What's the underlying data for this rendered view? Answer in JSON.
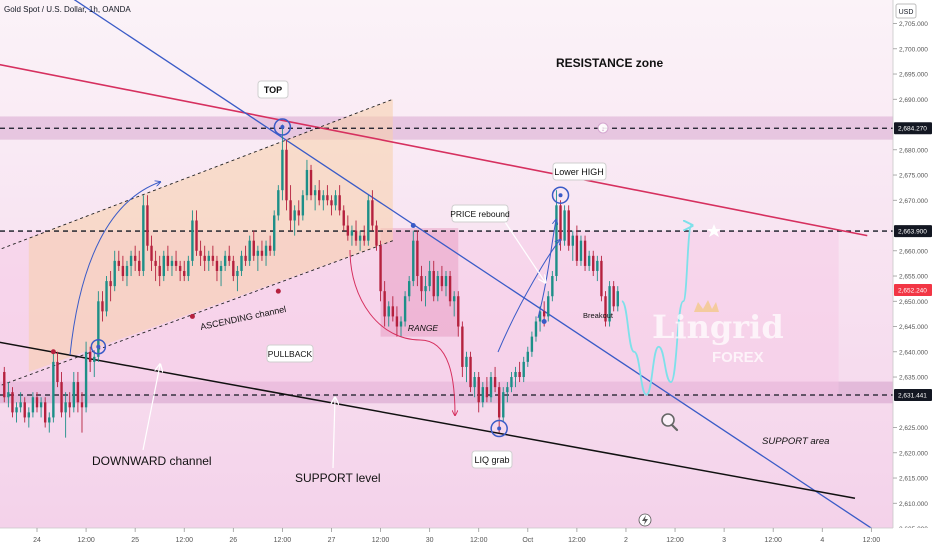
{
  "header": {
    "symbol_title": "Gold Spot / U.S. Dollar, 1h, OANDA",
    "currency": "USD"
  },
  "price_axis": {
    "ticks": [
      2705,
      2700,
      2695,
      2690,
      2680,
      2675,
      2670,
      2660,
      2655,
      2650,
      2645,
      2640,
      2635,
      2625,
      2620,
      2615,
      2610,
      2605
    ],
    "tick_labels": [
      "2,705.000",
      "2,700.000",
      "2,695.000",
      "2,690.000",
      "2,680.000",
      "2,675.000",
      "2,670.000",
      "2,660.000",
      "2,655.000",
      "2,650.000",
      "2,645.000",
      "2,640.000",
      "2,635.000",
      "2,625.000",
      "2,620.000",
      "2,615.000",
      "2,610.000",
      "2,605.000"
    ],
    "tags": [
      {
        "value": 2684.27,
        "label": "2,684.270",
        "color": "#131722"
      },
      {
        "value": 2663.9,
        "label": "2,663.900",
        "color": "#131722"
      },
      {
        "value": 2652.24,
        "label": "2,652.240",
        "color": "#f23645"
      },
      {
        "value": 2631.441,
        "label": "2,631.441",
        "color": "#131722"
      }
    ]
  },
  "time_axis": {
    "labels": [
      {
        "t": 0,
        "label": "24"
      },
      {
        "t": 12,
        "label": "12:00"
      },
      {
        "t": 24,
        "label": "25"
      },
      {
        "t": 36,
        "label": "12:00"
      },
      {
        "t": 48,
        "label": "26"
      },
      {
        "t": 60,
        "label": "12:00"
      },
      {
        "t": 72,
        "label": "27"
      },
      {
        "t": 84,
        "label": "12:00"
      },
      {
        "t": 96,
        "label": "30"
      },
      {
        "t": 108,
        "label": "12:00"
      },
      {
        "t": 120,
        "label": "Oct"
      },
      {
        "t": 132,
        "label": "12:00"
      },
      {
        "t": 144,
        "label": "2"
      },
      {
        "t": 156,
        "label": "12:00"
      },
      {
        "t": 168,
        "label": "3"
      },
      {
        "t": 180,
        "label": "12:00"
      },
      {
        "t": 192,
        "label": "4"
      },
      {
        "t": 204,
        "label": "12:00"
      }
    ]
  },
  "annotations": {
    "resistance_zone": "RESISTANCE zone",
    "top": "TOP",
    "lower_high": "Lower HIGH",
    "price_rebound": "PRICE rebound",
    "ascending_channel": "ASCENDING channel",
    "pullback": "PULLBACK",
    "range": "RANGE",
    "breakout": "Breakout",
    "downward_channel": "DOWNWARD channel",
    "support_level": "SUPPORT level",
    "liq_grab": "LIQ grab",
    "support_area": "SUPPORT area"
  },
  "watermark": {
    "name": "Lingrid",
    "sub": "FOREX"
  },
  "colors": {
    "bull": "#1d8f88",
    "bear": "#b5213e",
    "resistance_line": "#d6305f",
    "downtrend_line": "#3a5bc7",
    "support_line": "#111111",
    "projection": "#7ee0ea"
  },
  "chart_data": {
    "type": "candlestick",
    "title": "Gold Spot / U.S. Dollar, 1h, OANDA",
    "x_unit": "hours since 24 Sep 00:00",
    "y_unit": "USD",
    "ylim": [
      2602,
      2715
    ],
    "xlim": [
      -9,
      214
    ],
    "key_levels": [
      2684.27,
      2663.9,
      2631.441
    ],
    "last_price": 2652.24,
    "bars": [
      [
        -8,
        2636,
        2637,
        2630,
        2631
      ],
      [
        -7,
        2631,
        2634,
        2629,
        2632
      ],
      [
        -6,
        2632,
        2633,
        2627,
        2628
      ],
      [
        -5,
        2628,
        2630,
        2626,
        2629
      ],
      [
        -4,
        2629,
        2632,
        2628,
        2630
      ],
      [
        -3,
        2630,
        2631,
        2626,
        2627
      ],
      [
        -2,
        2627,
        2629,
        2625,
        2628
      ],
      [
        -1,
        2628,
        2632,
        2627,
        2631
      ],
      [
        0,
        2631,
        2632,
        2628,
        2629
      ],
      [
        1,
        2629,
        2631,
        2627,
        2630
      ],
      [
        2,
        2630,
        2631,
        2625,
        2626
      ],
      [
        3,
        2626,
        2628,
        2624,
        2627
      ],
      [
        4,
        2627,
        2640,
        2626,
        2638
      ],
      [
        5,
        2638,
        2640,
        2633,
        2634
      ],
      [
        6,
        2634,
        2636,
        2627,
        2628
      ],
      [
        7,
        2628,
        2632,
        2623,
        2630
      ],
      [
        8,
        2630,
        2632,
        2627,
        2629
      ],
      [
        9,
        2629,
        2636,
        2628,
        2634
      ],
      [
        10,
        2634,
        2636,
        2628,
        2630
      ],
      [
        11,
        2630,
        2632,
        2624,
        2629
      ],
      [
        12,
        2629,
        2642,
        2628,
        2640
      ],
      [
        13,
        2640,
        2641,
        2636,
        2638
      ],
      [
        14,
        2638,
        2640,
        2635,
        2639
      ],
      [
        15,
        2639,
        2652,
        2638,
        2650
      ],
      [
        16,
        2650,
        2652,
        2646,
        2648
      ],
      [
        17,
        2648,
        2655,
        2647,
        2654
      ],
      [
        18,
        2654,
        2656,
        2650,
        2653
      ],
      [
        19,
        2653,
        2660,
        2652,
        2658
      ],
      [
        20,
        2658,
        2660,
        2656,
        2657
      ],
      [
        21,
        2657,
        2659,
        2654,
        2655
      ],
      [
        22,
        2655,
        2658,
        2653,
        2657
      ],
      [
        23,
        2657,
        2660,
        2655,
        2659
      ],
      [
        24,
        2659,
        2661,
        2656,
        2658
      ],
      [
        25,
        2658,
        2660,
        2655,
        2656
      ],
      [
        26,
        2656,
        2671,
        2655,
        2669
      ],
      [
        27,
        2669,
        2671,
        2660,
        2661
      ],
      [
        28,
        2661,
        2663,
        2656,
        2658
      ],
      [
        29,
        2658,
        2660,
        2654,
        2657
      ],
      [
        30,
        2657,
        2659,
        2653,
        2655
      ],
      [
        31,
        2655,
        2660,
        2654,
        2659
      ],
      [
        32,
        2659,
        2661,
        2656,
        2657
      ],
      [
        33,
        2657,
        2659,
        2655,
        2658
      ],
      [
        34,
        2658,
        2660,
        2656,
        2657
      ],
      [
        35,
        2657,
        2658,
        2654,
        2656
      ],
      [
        36,
        2656,
        2658,
        2654,
        2655
      ],
      [
        37,
        2655,
        2659,
        2654,
        2658
      ],
      [
        38,
        2658,
        2668,
        2657,
        2666
      ],
      [
        39,
        2666,
        2668,
        2659,
        2660
      ],
      [
        40,
        2660,
        2662,
        2657,
        2659
      ],
      [
        41,
        2659,
        2661,
        2656,
        2658
      ],
      [
        42,
        2658,
        2660,
        2656,
        2659
      ],
      [
        43,
        2659,
        2661,
        2657,
        2658
      ],
      [
        44,
        2658,
        2659,
        2654,
        2656
      ],
      [
        45,
        2656,
        2658,
        2653,
        2657
      ],
      [
        46,
        2657,
        2660,
        2656,
        2659
      ],
      [
        47,
        2659,
        2661,
        2657,
        2658
      ],
      [
        48,
        2658,
        2659,
        2654,
        2655
      ],
      [
        49,
        2655,
        2657,
        2652,
        2656
      ],
      [
        50,
        2656,
        2660,
        2655,
        2659
      ],
      [
        51,
        2659,
        2661,
        2657,
        2658
      ],
      [
        52,
        2658,
        2663,
        2657,
        2662
      ],
      [
        53,
        2662,
        2664,
        2658,
        2659
      ],
      [
        54,
        2659,
        2661,
        2656,
        2660
      ],
      [
        55,
        2660,
        2662,
        2658,
        2659
      ],
      [
        56,
        2659,
        2662,
        2657,
        2661
      ],
      [
        57,
        2661,
        2663,
        2659,
        2660
      ],
      [
        58,
        2660,
        2668,
        2659,
        2667
      ],
      [
        59,
        2667,
        2673,
        2666,
        2672
      ],
      [
        60,
        2672,
        2685,
        2670,
        2680
      ],
      [
        61,
        2680,
        2682,
        2668,
        2670
      ],
      [
        62,
        2670,
        2673,
        2664,
        2666
      ],
      [
        63,
        2666,
        2669,
        2663,
        2668
      ],
      [
        64,
        2668,
        2670,
        2665,
        2667
      ],
      [
        65,
        2667,
        2672,
        2666,
        2671
      ],
      [
        66,
        2671,
        2678,
        2670,
        2676
      ],
      [
        67,
        2676,
        2677,
        2670,
        2671
      ],
      [
        68,
        2671,
        2673,
        2668,
        2672
      ],
      [
        69,
        2672,
        2674,
        2669,
        2670
      ],
      [
        70,
        2670,
        2672,
        2668,
        2671
      ],
      [
        71,
        2671,
        2673,
        2669,
        2670
      ],
      [
        72,
        2670,
        2671,
        2667,
        2669
      ],
      [
        73,
        2669,
        2672,
        2668,
        2671
      ],
      [
        74,
        2671,
        2673,
        2667,
        2668
      ],
      [
        75,
        2668,
        2669,
        2664,
        2665
      ],
      [
        76,
        2665,
        2667,
        2662,
        2663
      ],
      [
        77,
        2663,
        2665,
        2661,
        2664
      ],
      [
        78,
        2664,
        2666,
        2661,
        2662
      ],
      [
        79,
        2662,
        2664,
        2660,
        2663
      ],
      [
        80,
        2663,
        2665,
        2661,
        2662
      ],
      [
        81,
        2662,
        2671,
        2661,
        2670
      ],
      [
        82,
        2670,
        2672,
        2664,
        2665
      ],
      [
        83,
        2665,
        2666,
        2660,
        2661
      ],
      [
        84,
        2661,
        2662,
        2650,
        2652
      ],
      [
        85,
        2652,
        2654,
        2645,
        2647
      ],
      [
        86,
        2647,
        2650,
        2645,
        2649
      ],
      [
        87,
        2649,
        2651,
        2646,
        2647
      ],
      [
        88,
        2647,
        2649,
        2643,
        2645
      ],
      [
        89,
        2645,
        2647,
        2643,
        2646
      ],
      [
        90,
        2646,
        2652,
        2645,
        2651
      ],
      [
        91,
        2651,
        2655,
        2650,
        2654
      ],
      [
        92,
        2654,
        2664,
        2653,
        2662
      ],
      [
        93,
        2662,
        2664,
        2653,
        2655
      ],
      [
        94,
        2655,
        2657,
        2650,
        2652
      ],
      [
        95,
        2652,
        2655,
        2649,
        2653
      ],
      [
        96,
        2653,
        2658,
        2652,
        2656
      ],
      [
        97,
        2656,
        2658,
        2650,
        2651
      ],
      [
        98,
        2651,
        2656,
        2650,
        2655
      ],
      [
        99,
        2655,
        2657,
        2652,
        2653
      ],
      [
        100,
        2653,
        2656,
        2651,
        2655
      ],
      [
        101,
        2655,
        2656,
        2649,
        2650
      ],
      [
        102,
        2650,
        2652,
        2647,
        2651
      ],
      [
        103,
        2651,
        2652,
        2643,
        2645
      ],
      [
        104,
        2645,
        2646,
        2635,
        2637
      ],
      [
        105,
        2637,
        2640,
        2634,
        2639
      ],
      [
        106,
        2639,
        2640,
        2632,
        2633
      ],
      [
        107,
        2633,
        2636,
        2631,
        2635
      ],
      [
        108,
        2635,
        2636,
        2628,
        2630
      ],
      [
        109,
        2630,
        2634,
        2629,
        2633
      ],
      [
        110,
        2633,
        2635,
        2630,
        2631
      ],
      [
        111,
        2631,
        2636,
        2630,
        2635
      ],
      [
        112,
        2635,
        2637,
        2632,
        2633
      ],
      [
        113,
        2633,
        2634,
        2624,
        2627
      ],
      [
        114,
        2627,
        2633,
        2626,
        2632
      ],
      [
        115,
        2632,
        2634,
        2630,
        2633
      ],
      [
        116,
        2633,
        2636,
        2632,
        2635
      ],
      [
        117,
        2635,
        2637,
        2633,
        2636
      ],
      [
        118,
        2636,
        2638,
        2634,
        2635
      ],
      [
        119,
        2635,
        2639,
        2634,
        2638
      ],
      [
        120,
        2638,
        2641,
        2637,
        2640
      ],
      [
        121,
        2640,
        2644,
        2639,
        2643
      ],
      [
        122,
        2643,
        2647,
        2642,
        2646
      ],
      [
        123,
        2646,
        2649,
        2644,
        2648
      ],
      [
        124,
        2648,
        2650,
        2645,
        2647
      ],
      [
        125,
        2647,
        2652,
        2646,
        2651
      ],
      [
        126,
        2651,
        2656,
        2650,
        2655
      ],
      [
        127,
        2655,
        2672,
        2654,
        2669
      ],
      [
        128,
        2669,
        2670,
        2660,
        2662
      ],
      [
        129,
        2662,
        2669,
        2661,
        2668
      ],
      [
        130,
        2668,
        2669,
        2660,
        2661
      ],
      [
        131,
        2661,
        2664,
        2658,
        2663
      ],
      [
        132,
        2663,
        2665,
        2657,
        2658
      ],
      [
        133,
        2658,
        2663,
        2657,
        2662
      ],
      [
        134,
        2662,
        2663,
        2656,
        2657
      ],
      [
        135,
        2657,
        2660,
        2656,
        2659
      ],
      [
        136,
        2659,
        2660,
        2655,
        2656
      ],
      [
        137,
        2656,
        2659,
        2654,
        2658
      ],
      [
        138,
        2658,
        2659,
        2650,
        2651
      ],
      [
        139,
        2651,
        2652,
        2645,
        2646
      ],
      [
        140,
        2646,
        2654,
        2645,
        2653
      ],
      [
        141,
        2653,
        2654,
        2648,
        2649
      ],
      [
        142,
        2649,
        2653,
        2648,
        2652
      ]
    ],
    "projection_path": [
      [
        143,
        2650
      ],
      [
        146,
        2640
      ],
      [
        149,
        2631.5
      ],
      [
        152,
        2641
      ],
      [
        155,
        2634
      ],
      [
        158,
        2650
      ],
      [
        160,
        2665
      ]
    ],
    "lines": [
      {
        "name": "resistance-trendline",
        "from": [
          -10,
          2697
        ],
        "to": [
          203,
          2663
        ]
      },
      {
        "name": "downtrend-line",
        "from": [
          -10,
          2720
        ],
        "to": [
          206,
          2604
        ]
      },
      {
        "name": "support-trendline",
        "from": [
          -10,
          2642
        ],
        "to": [
          200,
          2611
        ]
      },
      {
        "name": "ascending-channel-upper",
        "from": [
          -10,
          2660
        ],
        "to": [
          87,
          2690
        ]
      },
      {
        "name": "ascending-channel-lower",
        "from": [
          -10,
          2633
        ],
        "to": [
          87,
          2662
        ]
      }
    ]
  }
}
